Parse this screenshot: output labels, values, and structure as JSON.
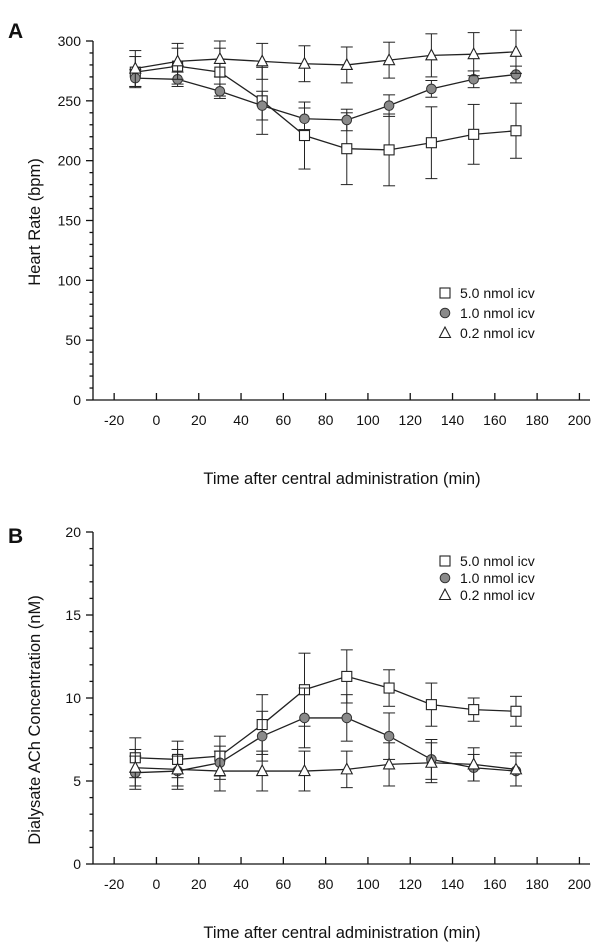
{
  "chart_data": [
    {
      "type": "line",
      "panel_label": "A",
      "xlabel": "Time after central administration (min)",
      "ylabel": "Heart Rate (bpm)",
      "xlim": [
        -30,
        205
      ],
      "ylim": [
        0,
        300
      ],
      "xticks": [
        -20,
        0,
        20,
        40,
        60,
        80,
        100,
        120,
        140,
        160,
        180,
        200
      ],
      "yticks": [
        0,
        50,
        100,
        150,
        200,
        250,
        300
      ],
      "legend_position": "lower-right",
      "x": [
        -10,
        10,
        30,
        50,
        70,
        90,
        110,
        130,
        150,
        170
      ],
      "series": [
        {
          "name": "5.0 nmol icv",
          "marker": "square",
          "values": [
            274,
            279,
            274,
            250,
            221,
            210,
            209,
            215,
            222,
            225
          ],
          "errors": [
            13,
            15,
            20,
            28,
            28,
            30,
            30,
            30,
            25,
            23
          ]
        },
        {
          "name": "1.0 nmol icv",
          "marker": "circle",
          "values": [
            269,
            268,
            258,
            246,
            235,
            234,
            246,
            260,
            268,
            272
          ],
          "errors": [
            7,
            6,
            6,
            12,
            9,
            9,
            9,
            7,
            7,
            7
          ]
        },
        {
          "name": "0.2 nmol icv",
          "marker": "triangle",
          "values": [
            277,
            283,
            285,
            283,
            281,
            280,
            284,
            288,
            289,
            291
          ],
          "errors": [
            15,
            15,
            15,
            15,
            15,
            15,
            15,
            18,
            18,
            18
          ]
        }
      ]
    },
    {
      "type": "line",
      "panel_label": "B",
      "xlabel": "Time after central administration (min)",
      "ylabel": "Dialysate ACh Concentration (nM)",
      "xlim": [
        -30,
        205
      ],
      "ylim": [
        0,
        20
      ],
      "xticks": [
        -20,
        0,
        20,
        40,
        60,
        80,
        100,
        120,
        140,
        160,
        180,
        200
      ],
      "yticks": [
        0,
        5,
        10,
        15,
        20
      ],
      "legend_position": "top-right",
      "x": [
        -10,
        10,
        30,
        50,
        70,
        90,
        110,
        130,
        150,
        170
      ],
      "series": [
        {
          "name": "5.0 nmol icv",
          "marker": "square",
          "values": [
            6.4,
            6.3,
            6.5,
            8.4,
            10.5,
            11.3,
            10.6,
            9.6,
            9.3,
            9.2
          ],
          "errors": [
            1.2,
            1.1,
            1.2,
            1.8,
            2.2,
            1.6,
            1.1,
            1.3,
            0.7,
            0.9
          ]
        },
        {
          "name": "1.0 nmol icv",
          "marker": "circle",
          "values": [
            5.5,
            5.6,
            6.1,
            7.7,
            8.8,
            8.8,
            7.7,
            6.3,
            5.8,
            5.6
          ],
          "errors": [
            1.0,
            0.9,
            1.0,
            1.5,
            1.8,
            1.4,
            1.4,
            1.2,
            0.8,
            0.9
          ]
        },
        {
          "name": "0.2 nmol icv",
          "marker": "triangle",
          "values": [
            5.8,
            5.7,
            5.6,
            5.6,
            5.6,
            5.7,
            6.0,
            6.1,
            6.0,
            5.7
          ],
          "errors": [
            1.1,
            1.2,
            1.2,
            1.2,
            1.2,
            1.1,
            1.3,
            1.2,
            1.0,
            1.0
          ]
        }
      ]
    }
  ]
}
